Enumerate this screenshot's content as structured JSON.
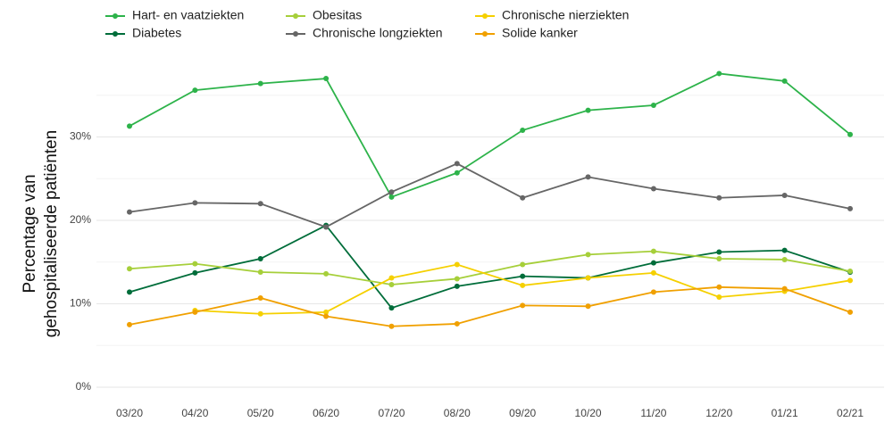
{
  "chart_data": {
    "type": "line",
    "ylabel": [
      "Percentage van",
      "gehospitaliseerde patiënten"
    ],
    "categories": [
      "03/20",
      "04/20",
      "05/20",
      "06/20",
      "07/20",
      "08/20",
      "09/20",
      "10/20",
      "11/20",
      "12/20",
      "01/21",
      "02/21"
    ],
    "series": [
      {
        "name": "Hart- en vaatziekten",
        "color": "#2db34a",
        "values": [
          31.3,
          35.6,
          36.4,
          37.0,
          22.8,
          25.7,
          30.8,
          33.2,
          33.8,
          37.6,
          36.7,
          30.3
        ]
      },
      {
        "name": "Diabetes",
        "color": "#006d3a",
        "values": [
          11.4,
          13.7,
          15.4,
          19.4,
          9.5,
          12.1,
          13.3,
          13.1,
          14.9,
          16.2,
          16.4,
          13.8
        ]
      },
      {
        "name": "Obesitas",
        "color": "#a6cf3a",
        "values": [
          14.2,
          14.8,
          13.8,
          13.6,
          12.3,
          13.0,
          14.7,
          15.9,
          16.3,
          15.4,
          15.3,
          13.9
        ]
      },
      {
        "name": "Chronische longziekten",
        "color": "#666666",
        "values": [
          21.0,
          22.1,
          22.0,
          19.2,
          23.4,
          26.8,
          22.7,
          25.2,
          23.8,
          22.7,
          23.0,
          21.4
        ]
      },
      {
        "name": "Chronische nierziekten",
        "color": "#f5d000",
        "values": [
          null,
          9.2,
          8.8,
          9.0,
          13.1,
          14.7,
          12.2,
          13.1,
          13.7,
          10.8,
          11.5,
          12.8
        ]
      },
      {
        "name": "Solide kanker",
        "color": "#f0a000",
        "values": [
          7.5,
          9.0,
          10.7,
          8.5,
          7.3,
          7.6,
          9.8,
          9.7,
          11.4,
          12.0,
          11.8,
          9.0
        ]
      }
    ],
    "ylim": [
      0,
      40
    ],
    "yticks": [
      {
        "value": 0,
        "label": "0%"
      },
      {
        "value": 10,
        "label": "10%"
      },
      {
        "value": 20,
        "label": "20%"
      },
      {
        "value": 30,
        "label": "30%"
      }
    ],
    "minor_yticks": [
      5,
      15,
      25,
      35
    ],
    "grid": true
  }
}
